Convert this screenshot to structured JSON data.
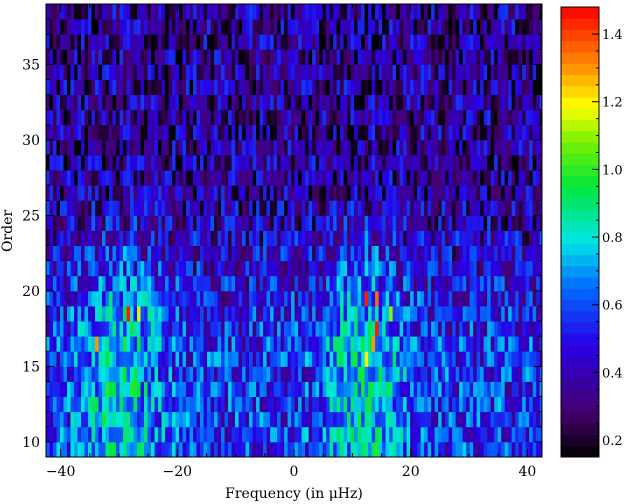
{
  "chart_data": {
    "type": "heatmap",
    "title": "",
    "xlabel": "Frequency (in μHz)",
    "ylabel": "Order",
    "xlim": [
      -42.5,
      42.5
    ],
    "ylim": [
      9,
      39
    ],
    "xticks": [
      -40,
      -20,
      0,
      20,
      40
    ],
    "xtick_labels": [
      "−40",
      "−20",
      "0",
      "20",
      "40"
    ],
    "yticks": [
      10,
      15,
      20,
      25,
      30,
      35
    ],
    "ytick_labels": [
      "10",
      "15",
      "20",
      "25",
      "30",
      "35"
    ],
    "colorbar": {
      "range": [
        0.15,
        1.48
      ],
      "ticks": [
        0.2,
        0.4,
        0.6,
        0.8,
        1.0,
        1.2,
        1.4
      ],
      "tick_labels": [
        "0.2",
        "0.4",
        "0.6",
        "0.8",
        "1.0",
        "1.2",
        "1.4"
      ],
      "colormap": "rainbow (black → purple → blue → cyan → green → yellow → red)"
    },
    "grid": false,
    "orders": [
      9,
      10,
      11,
      12,
      13,
      14,
      15,
      16,
      17,
      18,
      19,
      20,
      21,
      22,
      23,
      24,
      25,
      26,
      27,
      28,
      29,
      30,
      31,
      32,
      33,
      34,
      35,
      36,
      37,
      38
    ],
    "frequency_bin_width": 0.6,
    "hotspots": [
      {
        "x": -29,
        "order": 18.5,
        "value": 1.45
      },
      {
        "x": -34,
        "order": 16.5,
        "value": 1.3
      },
      {
        "x": 12,
        "order": 19.5,
        "value": 1.45
      },
      {
        "x": 14,
        "order": 19.5,
        "value": 1.35
      },
      {
        "x": 14,
        "order": 17.5,
        "value": 1.45
      },
      {
        "x": 13,
        "order": 16.5,
        "value": 1.3
      },
      {
        "x": 12,
        "order": 15.5,
        "value": 1.2
      },
      {
        "x": -27,
        "order": 18.5,
        "value": 1.15
      },
      {
        "x": 16,
        "order": 18.5,
        "value": 1.1
      }
    ],
    "ridges": [
      {
        "center": -30,
        "order_min": 9,
        "order_max": 25,
        "peak_value": 0.95
      },
      {
        "center": 12,
        "order_min": 9,
        "order_max": 25,
        "peak_value": 0.95
      }
    ],
    "background_low_orders": 0.55,
    "background_high_orders": 0.35
  }
}
